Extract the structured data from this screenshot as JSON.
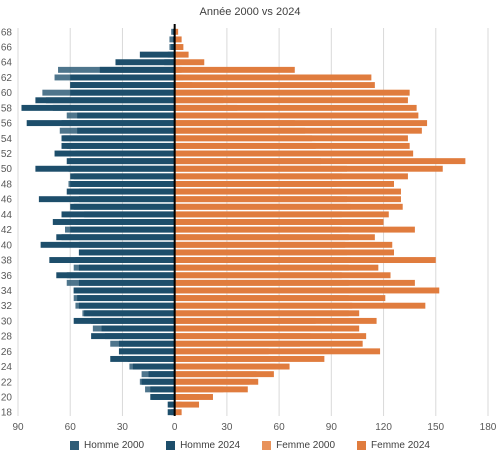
{
  "chart_data": {
    "type": "bar",
    "orientation": "horizontal-pyramid",
    "title": "Année 2000 vs 2024",
    "xlim": [
      -90,
      180
    ],
    "xticks": [
      -90,
      -60,
      -30,
      0,
      30,
      60,
      90,
      120,
      150,
      180
    ],
    "xtick_labels": [
      "90",
      "60",
      "30",
      "0",
      "30",
      "60",
      "90",
      "120",
      "150",
      "180"
    ],
    "grid": true,
    "legend_position": "bottom",
    "categories": [
      18,
      19,
      20,
      21,
      22,
      23,
      24,
      25,
      26,
      27,
      28,
      29,
      30,
      31,
      32,
      33,
      34,
      35,
      36,
      37,
      38,
      39,
      40,
      41,
      42,
      43,
      44,
      45,
      46,
      47,
      48,
      49,
      50,
      51,
      52,
      53,
      54,
      55,
      56,
      57,
      58,
      59,
      60,
      61,
      62,
      63,
      64,
      65,
      66,
      67,
      68
    ],
    "ytick_labels": [
      "18",
      "20",
      "22",
      "24",
      "26",
      "28",
      "30",
      "32",
      "34",
      "36",
      "38",
      "40",
      "42",
      "44",
      "46",
      "48",
      "50",
      "52",
      "54",
      "56",
      "58",
      "60",
      "62",
      "64",
      "66",
      "68"
    ],
    "series": [
      {
        "name": "Homme 2000",
        "color": "#2f5d78",
        "values": [
          -2,
          -3,
          -13,
          -17,
          -20,
          -19,
          -26,
          -27,
          -32,
          -37,
          -40,
          -47,
          -48,
          -53,
          -57,
          -58,
          -58,
          -62,
          -62,
          -58,
          -57,
          -55,
          -55,
          -65,
          -63,
          -57,
          -52,
          -58,
          -55,
          -55,
          -61,
          -58,
          -61,
          -60,
          -57,
          -62,
          -64,
          -66,
          -65,
          -62,
          -70,
          -74,
          -76,
          -60,
          -69,
          -67,
          -6,
          -4,
          -3,
          -3,
          -2
        ]
      },
      {
        "name": "Homme 2024",
        "color": "#1d4e6b",
        "values": [
          -4,
          -4,
          -14,
          -14,
          -19,
          -15,
          -24,
          -37,
          -32,
          -32,
          -48,
          -42,
          -58,
          -52,
          -55,
          -56,
          -58,
          -55,
          -68,
          -55,
          -72,
          -55,
          -77,
          -68,
          -60,
          -70,
          -65,
          -60,
          -78,
          -62,
          -60,
          -60,
          -80,
          -62,
          -69,
          -65,
          -65,
          -56,
          -85,
          -56,
          -88,
          -80,
          -60,
          -60,
          -60,
          -43,
          -34,
          -20,
          -2,
          -1,
          -1
        ]
      },
      {
        "name": "Femme 2000",
        "color": "#e8925a",
        "values": [
          0,
          4,
          14,
          28,
          43,
          47,
          58,
          55,
          54,
          72,
          78,
          84,
          81,
          100,
          102,
          100,
          101,
          100,
          96,
          100,
          101,
          99,
          98,
          100,
          96,
          101,
          96,
          101,
          99,
          96,
          93,
          96,
          99,
          84,
          83,
          81,
          79,
          75,
          69,
          52,
          36,
          28,
          28,
          10,
          5,
          4,
          3,
          2,
          2,
          1,
          0
        ]
      },
      {
        "name": "Femme 2024",
        "color": "#e07c3e",
        "values": [
          4,
          14,
          22,
          42,
          48,
          57,
          66,
          86,
          118,
          108,
          110,
          106,
          116,
          106,
          144,
          121,
          152,
          138,
          124,
          117,
          150,
          126,
          125,
          115,
          138,
          120,
          123,
          131,
          130,
          130,
          126,
          134,
          154,
          167,
          137,
          135,
          134,
          142,
          145,
          140,
          139,
          134,
          135,
          115,
          113,
          69,
          17,
          8,
          5,
          4,
          2
        ]
      }
    ]
  }
}
